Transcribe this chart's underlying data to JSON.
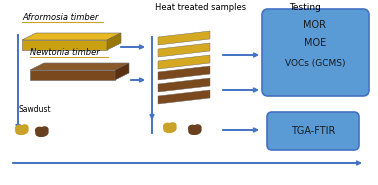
{
  "bg_color": "#ffffff",
  "arrow_color": "#4472c4",
  "afrormosia_label": "Afrormosia timber",
  "newtonia_label": "Newtonia timber",
  "sawdust_label": "Sawdust",
  "heat_label": "Heat treated samples",
  "testing_label": "Testing",
  "box1_texts": [
    "MOR",
    "MOE",
    "VOCs (GCMS)"
  ],
  "box2_text": "TGA-FTIR",
  "box_color": "#5b9bd5",
  "box_edge_color": "#4472c4",
  "afro_top_color": "#e8b820",
  "afro_front_color": "#c9a010",
  "afro_side_color": "#9a7800",
  "newt_top_color": "#8b5a2b",
  "newt_front_color": "#7a4a1e",
  "newt_side_color": "#5a3010",
  "heat_afro_color": "#d4a820",
  "heat_newt_color": "#7a4a1e",
  "label_color": "#000000",
  "underline_color_afro": "#c9a227",
  "underline_color_newt": "#c9a227",
  "sawdust_gold": "#c9a227",
  "sawdust_brown": "#6b4020"
}
